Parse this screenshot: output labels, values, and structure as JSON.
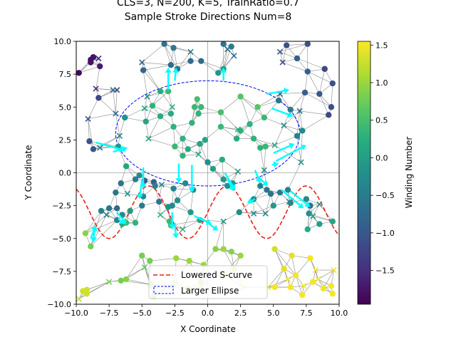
{
  "chart_data": {
    "type": "scatter",
    "title_lines": [
      "CLS=3, N=200, K=5, TrainRatio=0.7",
      "Sample Stroke Directions Num=8"
    ],
    "xlabel": "X Coordinate",
    "ylabel": "Y Coordinate",
    "xlim": [
      -10,
      10
    ],
    "ylim": [
      -10,
      10
    ],
    "xticks": [
      -10,
      -7.5,
      -5,
      -2.5,
      0,
      2.5,
      5,
      7.5,
      10
    ],
    "yticks": [
      -10,
      -7.5,
      -5,
      -2.5,
      0,
      2.5,
      5,
      7.5,
      10
    ],
    "tick_labels": [
      "−10.0",
      "−7.5",
      "−5.0",
      "−2.5",
      "0.0",
      "2.5",
      "5.0",
      "7.5",
      "10.0"
    ],
    "colorbar": {
      "label": "Winding Number",
      "colormap": "viridis",
      "range": [
        -1.95,
        1.55
      ],
      "ticks": [
        -1.5,
        -1.0,
        -0.5,
        0.0,
        0.5,
        1.0,
        1.5
      ],
      "tick_labels": [
        "−1.5",
        "−1.0",
        "−0.5",
        "0.0",
        "0.5",
        "1.0",
        "1.5"
      ]
    },
    "legend": {
      "placement": "lower center",
      "entries": [
        {
          "label": "Lowered S-curve",
          "style": "dashed",
          "color": "#e8211c"
        },
        {
          "label": "Larger Ellipse",
          "style": "dashed-box",
          "color": "#0000ee"
        }
      ]
    },
    "s_curve": {
      "amplitude": 2,
      "frequency": 1.05,
      "offset": -3
    },
    "ellipse": {
      "center": [
        0,
        3
      ],
      "semi_axes": [
        7,
        4
      ]
    },
    "points_circle": [
      [
        -9.8,
        7.6,
        -1.9
      ],
      [
        -8.9,
        8.6,
        -1.8
      ],
      [
        -8.7,
        8.8,
        -1.8
      ],
      [
        -8.2,
        8.1,
        -1.7
      ],
      [
        -8.9,
        8.4,
        -1.8
      ],
      [
        -8.3,
        5.7,
        -1.2
      ],
      [
        -9.0,
        2.4,
        -1.0
      ],
      [
        -8.7,
        1.8,
        -1.0
      ],
      [
        -8.1,
        -2.9,
        -0.4
      ],
      [
        -6.6,
        -0.8,
        -0.6
      ],
      [
        -6.3,
        4.2,
        -0.2
      ],
      [
        -6.8,
        2.0,
        -0.1
      ],
      [
        -7.0,
        -1.5,
        -0.6
      ],
      [
        -7.5,
        -2.7,
        -0.6
      ],
      [
        -6.9,
        -3.6,
        -0.4
      ],
      [
        -6.5,
        -3.9,
        0.2
      ],
      [
        -6.2,
        -3.8,
        0.4
      ],
      [
        -5.5,
        -0.5,
        -0.5
      ],
      [
        -5.2,
        -0.2,
        -0.2
      ],
      [
        -4.8,
        -0.6,
        -1.0
      ],
      [
        -4.1,
        -0.7,
        -0.9
      ],
      [
        -4.0,
        -1.0,
        -0.4
      ],
      [
        -4.9,
        -1.8,
        -0.3
      ],
      [
        -5.0,
        -2.5,
        -0.5
      ],
      [
        -3.7,
        -2.2,
        -0.6
      ],
      [
        -3.0,
        -2.6,
        -0.2
      ],
      [
        -2.7,
        -2.5,
        -0.3
      ],
      [
        -2.8,
        -4.0,
        0.5
      ],
      [
        -2.9,
        -3.7,
        0.4
      ],
      [
        -2.6,
        -1.2,
        -0.4
      ],
      [
        -1.7,
        -0.8,
        -0.3
      ],
      [
        -1.1,
        -1.3,
        -0.3
      ],
      [
        -1.3,
        -3.0,
        -0.1
      ],
      [
        -0.6,
        -3.6,
        0.1
      ],
      [
        -2.3,
        -2.1,
        -0.2
      ],
      [
        -4.9,
        7.8,
        -0.8
      ],
      [
        -3.3,
        9.8,
        -0.6
      ],
      [
        -2.8,
        8.2,
        -0.7
      ],
      [
        -2.6,
        9.5,
        -0.5
      ],
      [
        -2.3,
        7.9,
        -0.6
      ],
      [
        -3.6,
        6.2,
        0.2
      ],
      [
        -3.0,
        6.2,
        0.4
      ],
      [
        -4.2,
        5.1,
        0.3
      ],
      [
        -4.7,
        3.9,
        0.1
      ],
      [
        -3.6,
        4.3,
        0.2
      ],
      [
        -2.8,
        4.5,
        0.2
      ],
      [
        -2.6,
        3.5,
        0.3
      ],
      [
        -2.5,
        2.0,
        0.4
      ],
      [
        -1.9,
        1.3,
        0.3
      ],
      [
        -1.9,
        2.6,
        0.3
      ],
      [
        -1.0,
        5.0,
        0.4
      ],
      [
        -0.8,
        5.6,
        0.5
      ],
      [
        -0.5,
        5.0,
        0.4
      ],
      [
        -1.2,
        3.8,
        0.3
      ],
      [
        -1.5,
        1.8,
        0.2
      ],
      [
        -0.6,
        2.2,
        0.1
      ],
      [
        -0.2,
        2.5,
        0.1
      ],
      [
        0.0,
        0.8,
        -0.2
      ],
      [
        0.4,
        0.3,
        0.0
      ],
      [
        1.1,
        1.0,
        0.2
      ],
      [
        1.9,
        -0.8,
        -0.1
      ],
      [
        1.5,
        -1.0,
        -0.2
      ],
      [
        1.2,
        -0.5,
        -0.1
      ],
      [
        0.8,
        7.6,
        -0.1
      ],
      [
        1.2,
        7.9,
        0.0
      ],
      [
        1.2,
        9.8,
        -0.6
      ],
      [
        1.8,
        9.6,
        -0.5
      ],
      [
        -0.5,
        8.5,
        -0.7
      ],
      [
        -1.3,
        8.5,
        -0.7
      ],
      [
        -0.7,
        4.5,
        0.3
      ],
      [
        2.2,
        2.6,
        0.2
      ],
      [
        2.5,
        3.2,
        0.3
      ],
      [
        3.2,
        3.7,
        0.3
      ],
      [
        3.5,
        2.6,
        0.3
      ],
      [
        4.0,
        1.9,
        0.3
      ],
      [
        4.4,
        2.0,
        0.4
      ],
      [
        4.3,
        4.2,
        0.4
      ],
      [
        3.8,
        5.0,
        0.6
      ],
      [
        2.5,
        5.8,
        0.6
      ],
      [
        1.0,
        4.6,
        0.5
      ],
      [
        1.0,
        3.5,
        0.4
      ],
      [
        4.0,
        -1.0,
        -0.4
      ],
      [
        4.5,
        -1.3,
        -0.6
      ],
      [
        4.8,
        -1.6,
        -0.6
      ],
      [
        5.5,
        -1.5,
        -0.6
      ],
      [
        6.1,
        -1.3,
        -0.4
      ],
      [
        6.3,
        -2.3,
        -0.3
      ],
      [
        5.0,
        -2.5,
        -0.1
      ],
      [
        3.5,
        -2.0,
        -0.2
      ],
      [
        2.4,
        -3.0,
        -0.3
      ],
      [
        6.0,
        9.7,
        -1.1
      ],
      [
        6.8,
        8.7,
        -0.9
      ],
      [
        7.6,
        9.8,
        -1.1
      ],
      [
        8.9,
        7.9,
        -1.2
      ],
      [
        9.5,
        6.8,
        -1.1
      ],
      [
        8.5,
        6.0,
        -1.0
      ],
      [
        7.6,
        7.7,
        -0.9
      ],
      [
        7.4,
        6.1,
        -0.9
      ],
      [
        9.4,
        5.0,
        -1.1
      ],
      [
        9.2,
        4.4,
        -1.2
      ],
      [
        5.4,
        5.5,
        -0.6
      ],
      [
        6.3,
        4.8,
        -0.5
      ],
      [
        6.8,
        2.8,
        -0.4
      ],
      [
        7.2,
        3.2,
        -0.3
      ],
      [
        7.6,
        -4.3,
        0.2
      ],
      [
        8.5,
        -3.9,
        0.0
      ],
      [
        9.5,
        -3.7,
        0.1
      ],
      [
        7.8,
        -2.5,
        -0.6
      ],
      [
        7.5,
        -2.0,
        -0.3
      ],
      [
        7.7,
        -3.1,
        -0.2
      ],
      [
        -6.2,
        0.5,
        0.1
      ],
      [
        -6.9,
        -2.7,
        -0.8
      ],
      [
        -6.5,
        -3.2,
        -0.3
      ],
      [
        -5.9,
        -2.9,
        -0.1
      ],
      [
        -5.5,
        -3.8,
        0.3
      ],
      [
        -9.3,
        -4.6,
        0.9
      ],
      [
        -8.9,
        -5.6,
        0.8
      ],
      [
        -9.2,
        -8.9,
        1.3
      ],
      [
        -9.5,
        -9.0,
        1.3
      ],
      [
        -9.2,
        -9.2,
        1.3
      ],
      [
        -6.6,
        -8.2,
        0.8
      ],
      [
        -6.2,
        -8.1,
        0.9
      ],
      [
        -5.0,
        -6.3,
        0.8
      ],
      [
        -4.4,
        -6.7,
        0.8
      ],
      [
        -4.3,
        -8.5,
        0.9
      ],
      [
        -4.1,
        -9.4,
        1.0
      ],
      [
        -2.4,
        -6.5,
        1.0
      ],
      [
        -1.4,
        -6.7,
        1.0
      ],
      [
        -0.3,
        -7.0,
        1.0
      ],
      [
        0.6,
        -5.8,
        0.9
      ],
      [
        1.2,
        -5.8,
        1.0
      ],
      [
        1.8,
        -6.0,
        0.9
      ],
      [
        2.5,
        -6.3,
        1.0
      ],
      [
        2.0,
        -7.3,
        1.1
      ],
      [
        1.2,
        -7.7,
        1.1
      ],
      [
        -2.5,
        -8.4,
        1.1
      ],
      [
        -1.5,
        -8.8,
        1.1
      ],
      [
        -0.5,
        -8.3,
        1.1
      ],
      [
        5.1,
        -5.8,
        1.3
      ],
      [
        5.8,
        -7.3,
        1.4
      ],
      [
        6.4,
        -6.3,
        1.4
      ],
      [
        6.7,
        -7.8,
        1.5
      ],
      [
        5.1,
        -8.7,
        1.5
      ],
      [
        6.3,
        -8.7,
        1.5
      ],
      [
        7.2,
        -9.3,
        1.5
      ],
      [
        8.0,
        -8.3,
        1.5
      ],
      [
        8.8,
        -8.8,
        1.5
      ],
      [
        9.5,
        -9.2,
        1.5
      ],
      [
        9.4,
        -8.6,
        1.5
      ],
      [
        7.8,
        -6.5,
        1.5
      ]
    ],
    "points_x": [
      [
        -8.3,
        8.7,
        -1.6
      ],
      [
        -8.5,
        6.4,
        -1.5
      ],
      [
        -6.9,
        6.3,
        -1.2
      ],
      [
        -9.1,
        4.1,
        -1.1
      ],
      [
        -7.0,
        4.5,
        -0.7
      ],
      [
        -6.7,
        2.8,
        -0.4
      ],
      [
        -8.2,
        1.9,
        -0.5
      ],
      [
        -4.6,
        5.8,
        -0.2
      ],
      [
        -4.8,
        4.9,
        0.1
      ],
      [
        -4.5,
        2.6,
        0.1
      ],
      [
        -2.7,
        5.0,
        0.2
      ],
      [
        -7.7,
        -3.2,
        -0.4
      ],
      [
        -6.1,
        -1.6,
        -0.2
      ],
      [
        -3.5,
        -0.9,
        -0.3
      ],
      [
        -1.9,
        -4.3,
        0.3
      ],
      [
        -3.6,
        -3.2,
        0.3
      ],
      [
        1.2,
        -3.7,
        -0.1
      ],
      [
        3.5,
        -3.1,
        -0.3
      ],
      [
        4.4,
        -3.1,
        -0.4
      ],
      [
        6.2,
        -2.2,
        -0.4
      ],
      [
        8.0,
        -3.3,
        0.0
      ],
      [
        8.5,
        -2.4,
        -0.2
      ],
      [
        5.5,
        9.2,
        -1.0
      ],
      [
        5.7,
        8.4,
        -1.1
      ],
      [
        5.5,
        6.0,
        -0.8
      ],
      [
        5.8,
        3.6,
        -0.3
      ],
      [
        5.1,
        2.1,
        0.1
      ],
      [
        7.1,
        0.8,
        -0.1
      ],
      [
        7.0,
        4.7,
        -0.7
      ],
      [
        2.3,
        3.3,
        0.2
      ],
      [
        -0.7,
        1.4,
        0.1
      ],
      [
        -4.8,
        -7.2,
        0.7
      ],
      [
        -7.5,
        -8.3,
        0.8
      ],
      [
        -9.8,
        -9.6,
        1.2
      ],
      [
        -3.1,
        -8.7,
        0.9
      ],
      [
        -0.5,
        -8.6,
        1.1
      ],
      [
        2.7,
        -8.7,
        1.2
      ],
      [
        4.6,
        -8.7,
        1.4
      ],
      [
        7.3,
        -8.6,
        1.5
      ],
      [
        8.2,
        -7.4,
        1.5
      ],
      [
        9.6,
        -7.4,
        1.5
      ],
      [
        8.4,
        -8.1,
        1.5
      ],
      [
        6.1,
        -8.1,
        1.5
      ],
      [
        2.0,
        8.9,
        -0.7
      ],
      [
        1.5,
        9.4,
        -0.7
      ],
      [
        -1.3,
        9.2,
        -0.6
      ],
      [
        -5.0,
        8.4,
        -0.8
      ],
      [
        -7.2,
        6.3,
        -0.6
      ],
      [
        4.3,
        0.2,
        -0.2
      ],
      [
        2.3,
        0.1,
        -0.1
      ]
    ],
    "arrows": [
      [
        -3.0,
        6.3,
        -3.0,
        8.0
      ],
      [
        -2.5,
        7.0,
        -2.4,
        8.0
      ],
      [
        1.2,
        7.0,
        1.2,
        8.0
      ],
      [
        4.5,
        6.0,
        6.2,
        6.3
      ],
      [
        4.9,
        4.9,
        6.5,
        4.3
      ],
      [
        -8.5,
        2.3,
        -6.3,
        1.7
      ],
      [
        -7.2,
        1.6,
        -6.1,
        1.9
      ],
      [
        -4.9,
        0.4,
        -4.9,
        -1.2
      ],
      [
        -5.0,
        -0.6,
        -5.2,
        -2.0
      ],
      [
        -2.2,
        0.7,
        -2.2,
        -0.8
      ],
      [
        -1.2,
        0.6,
        -1.2,
        -1.5
      ],
      [
        -2.7,
        -3.0,
        -2.7,
        -4.3
      ],
      [
        -2.5,
        -3.8,
        -2.4,
        -5.0
      ],
      [
        -1.0,
        -3.3,
        0.3,
        -3.9
      ],
      [
        -0.4,
        -3.5,
        0.8,
        -4.4
      ],
      [
        1.3,
        0.0,
        2.1,
        -1.3
      ],
      [
        1.5,
        -0.5,
        2.0,
        -1.4
      ],
      [
        3.6,
        -2.0,
        3.0,
        -2.3
      ],
      [
        3.6,
        0.2,
        4.0,
        -0.8
      ],
      [
        3.8,
        -0.3,
        4.6,
        -1.0
      ],
      [
        4.9,
        0.6,
        5.4,
        0.7
      ],
      [
        5.2,
        0.9,
        7.5,
        2.1
      ],
      [
        5.0,
        1.5,
        6.6,
        2.2
      ],
      [
        5.6,
        -1.3,
        7.3,
        -2.7
      ],
      [
        6.3,
        -1.4,
        7.8,
        -2.6
      ],
      [
        -6.9,
        -3.0,
        -6.2,
        -3.9
      ],
      [
        -8.6,
        -4.2,
        -8.7,
        -5.3
      ],
      [
        -6.8,
        -3.5,
        -6.3,
        -3.9
      ],
      [
        -8.9,
        -5.0,
        -8.5,
        -4.0
      ]
    ],
    "edges_sample": 1
  }
}
